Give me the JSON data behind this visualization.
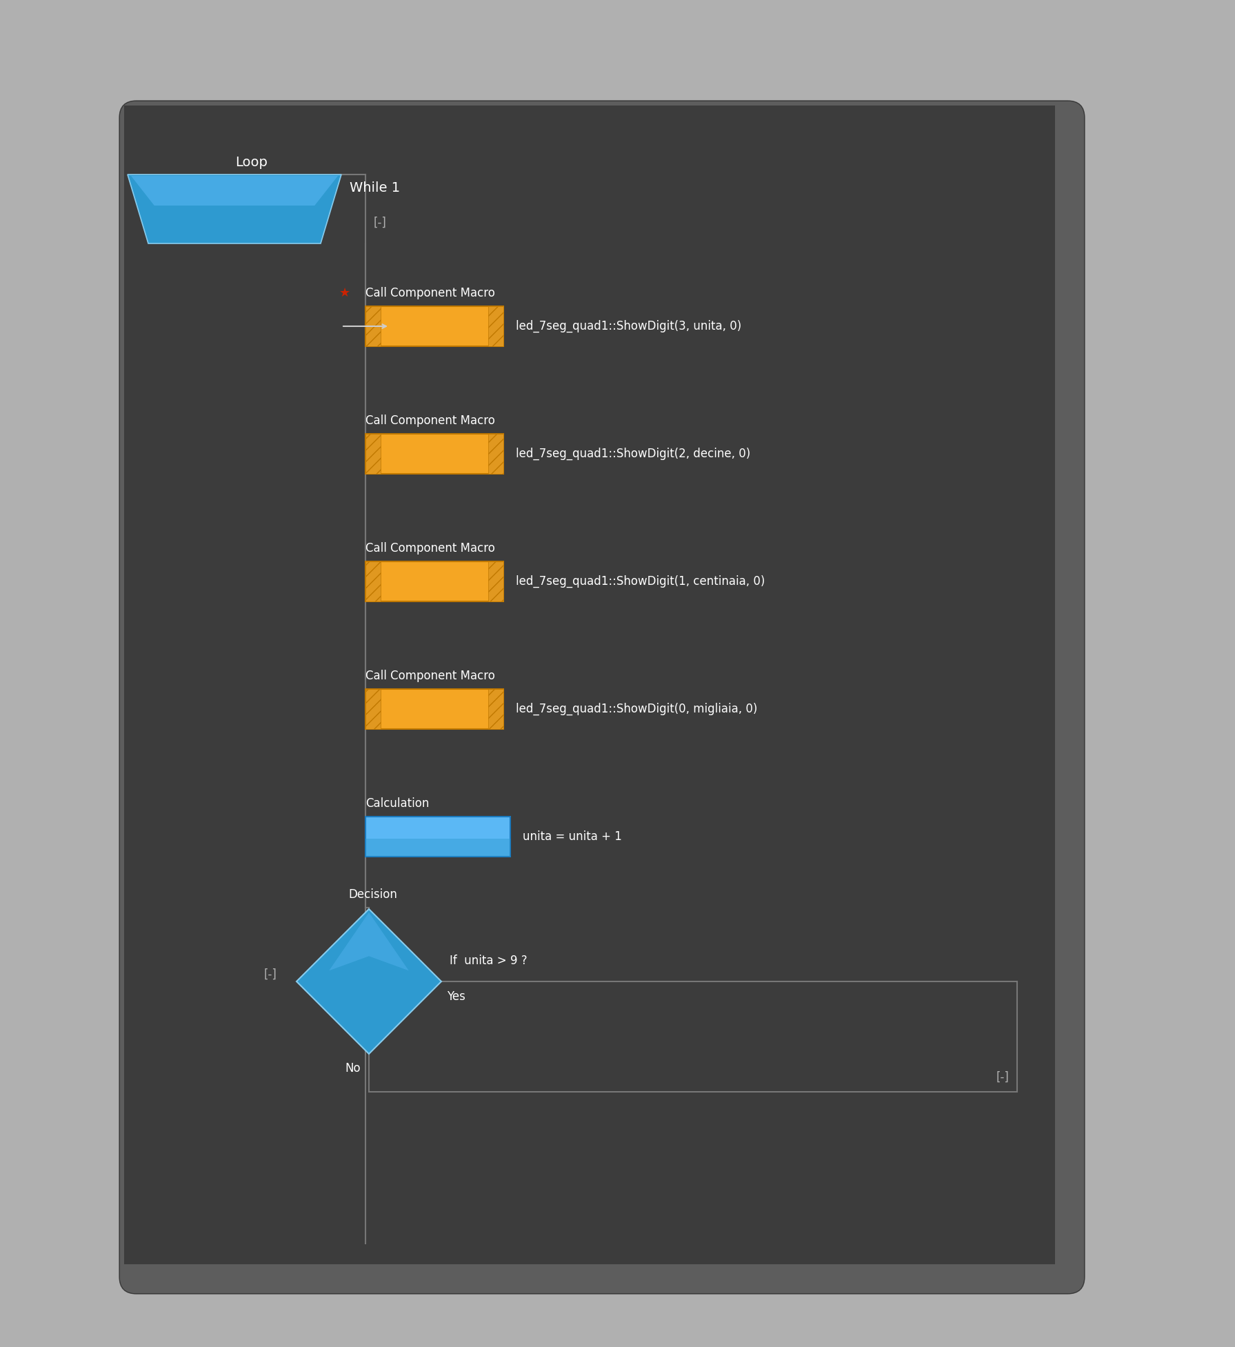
{
  "bg_color": "#3a3a3a",
  "outer_bg": "#b0b0b0",
  "card_bg": "#3c3c3c",
  "text_color": "#ffffff",
  "label_color": "#b0b0b0",
  "blue_dark": "#1a7abf",
  "blue_light": "#5bb8f5",
  "blue_mid": "#2e9ad0",
  "blue_loop": "#3399cc",
  "orange": "#f5a623",
  "orange_dark": "#c07800",
  "line_color": "#777777",
  "star_color": "#cc2200",
  "arrow_color": "#aaaaaa",
  "loop_label": "Loop",
  "loop_shape_label": "While 1",
  "minus_label_top": "[-]",
  "call_label": "Call Component Macro",
  "call1_text": "led_7seg_quad1::ShowDigit(3, unita, 0)",
  "call2_text": "led_7seg_quad1::ShowDigit(2, decine, 0)",
  "call3_text": "led_7seg_quad1::ShowDigit(1, centinaia, 0)",
  "call4_text": "led_7seg_quad1::ShowDigit(0, migliaia, 0)",
  "calc_label": "Calculation",
  "calc_text": "unita = unita + 1",
  "decision_label": "Decision",
  "decision_text": "If  unita > 9 ?",
  "yes_label": "Yes",
  "no_label": "No",
  "minus_label_left": "[-]",
  "minus_label_right": "[-]",
  "figsize": [
    17.91,
    19.53
  ]
}
